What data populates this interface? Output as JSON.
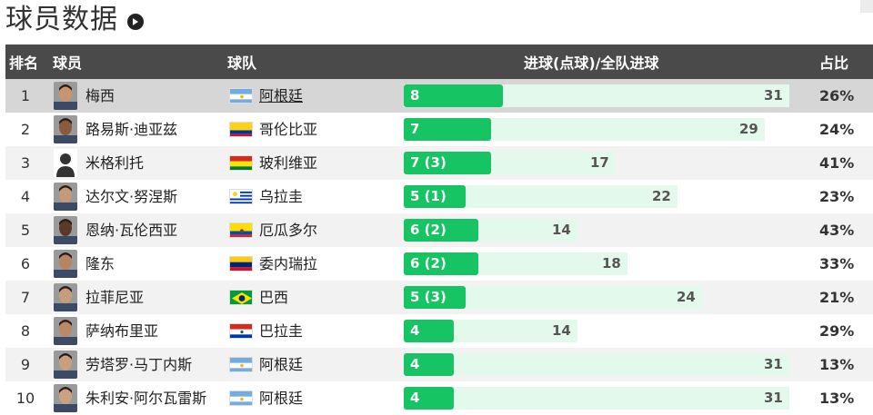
{
  "page": {
    "title": "球员数据",
    "more_icon": "arrow-right-circle-icon"
  },
  "table": {
    "headers": {
      "rank": "排名",
      "player": "球员",
      "team": "球队",
      "goals": "进球(点球)/全队进球",
      "pct": "占比"
    },
    "rows": [
      {
        "rank": "1",
        "player": "梅西",
        "team": "阿根廷",
        "flag": "argentina",
        "goals_label": "8",
        "goals": 8,
        "team_goals": 31,
        "team_goals_label": "31",
        "pct": "26%",
        "avatar": "player-photo",
        "highlight": true
      },
      {
        "rank": "2",
        "player": "路易斯·迪亚兹",
        "team": "哥伦比亚",
        "flag": "colombia",
        "goals_label": "7",
        "goals": 7,
        "team_goals": 29,
        "team_goals_label": "29",
        "pct": "24%",
        "avatar": "player-photo"
      },
      {
        "rank": "3",
        "player": "米格利托",
        "team": "玻利维亚",
        "flag": "bolivia",
        "goals_label": "7 (3)",
        "goals": 7,
        "team_goals": 17,
        "team_goals_label": "17",
        "pct": "41%",
        "avatar": "silhouette"
      },
      {
        "rank": "4",
        "player": "达尔文·努涅斯",
        "team": "乌拉圭",
        "flag": "uruguay",
        "goals_label": "5 (1)",
        "goals": 5,
        "team_goals": 22,
        "team_goals_label": "22",
        "pct": "23%",
        "avatar": "player-photo"
      },
      {
        "rank": "5",
        "player": "恩纳·瓦伦西亚",
        "team": "厄瓜多尔",
        "flag": "ecuador",
        "goals_label": "6 (2)",
        "goals": 6,
        "team_goals": 14,
        "team_goals_label": "14",
        "pct": "43%",
        "avatar": "player-photo"
      },
      {
        "rank": "6",
        "player": "隆东",
        "team": "委内瑞拉",
        "flag": "venezuela",
        "goals_label": "6 (2)",
        "goals": 6,
        "team_goals": 18,
        "team_goals_label": "18",
        "pct": "33%",
        "avatar": "player-photo"
      },
      {
        "rank": "7",
        "player": "拉菲尼亚",
        "team": "巴西",
        "flag": "brazil",
        "goals_label": "5 (3)",
        "goals": 5,
        "team_goals": 24,
        "team_goals_label": "24",
        "pct": "21%",
        "avatar": "player-photo"
      },
      {
        "rank": "8",
        "player": "萨纳布里亚",
        "team": "巴拉圭",
        "flag": "paraguay",
        "goals_label": "4",
        "goals": 4,
        "team_goals": 14,
        "team_goals_label": "14",
        "pct": "29%",
        "avatar": "player-photo"
      },
      {
        "rank": "9",
        "player": "劳塔罗·马丁内斯",
        "team": "阿根廷",
        "flag": "argentina",
        "goals_label": "4",
        "goals": 4,
        "team_goals": 31,
        "team_goals_label": "31",
        "pct": "13%",
        "avatar": "player-photo"
      },
      {
        "rank": "10",
        "player": "朱利安·阿尔瓦雷斯",
        "team": "阿根廷",
        "flag": "argentina",
        "goals_label": "4",
        "goals": 4,
        "team_goals": 31,
        "team_goals_label": "31",
        "pct": "13%",
        "avatar": "player-photo"
      }
    ]
  },
  "colors": {
    "header_bg": "#4a4a4a",
    "bar_fill": "#17c463",
    "bar_track": "#e3f9ec",
    "highlight_row": "#d6d6d6"
  }
}
